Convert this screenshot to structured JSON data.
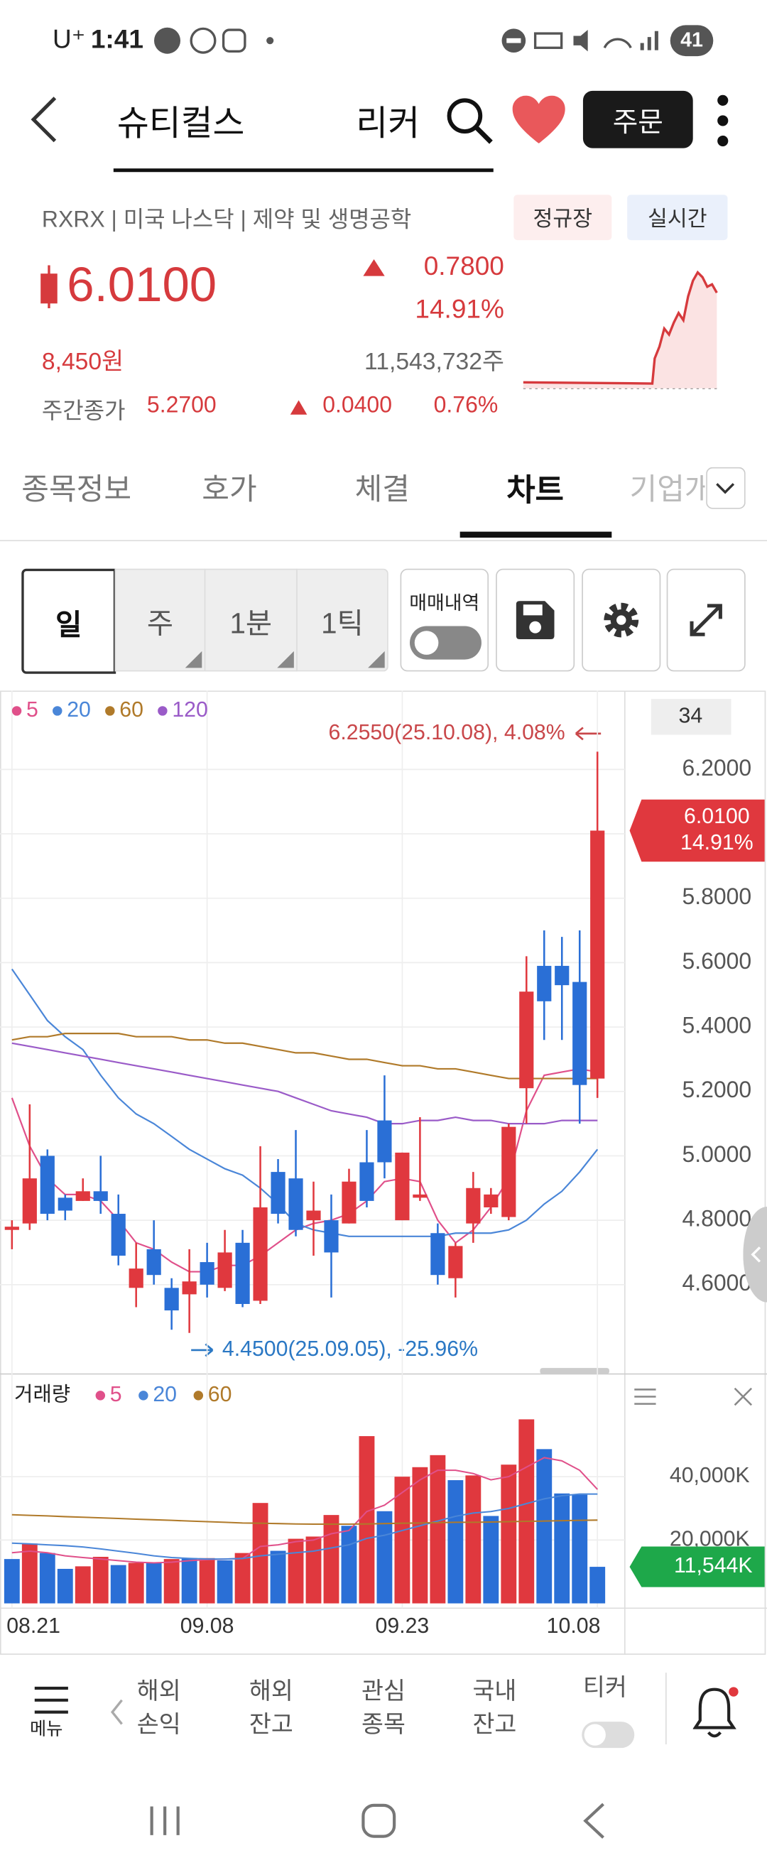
{
  "status_bar": {
    "carrier": "U⁺",
    "time": "1:41",
    "battery": "41"
  },
  "header": {
    "title": "슈티컬스",
    "ticker": "리커",
    "order": "주문"
  },
  "quote": {
    "info": "RXRX | 미국 나스닥 | 제약 및 생명공학",
    "session": "정규장",
    "realtime": "실시간",
    "price": "6.0100",
    "change": "0.7800",
    "change_pct": "14.91%",
    "price_krw": "8,450원",
    "volume": "11,543,732주",
    "day_close_label": "주간종가",
    "day_close": "5.2700",
    "day_change": "0.0400",
    "day_change_pct": "0.76%"
  },
  "tabs": [
    "종목정보",
    "호가",
    "체결",
    "차트",
    "기업개요"
  ],
  "toolbar": {
    "periods": [
      "일",
      "주",
      "1분",
      "1틱"
    ],
    "trade_history": "매매내역"
  },
  "chart_data": [
    {
      "type": "candlestick",
      "categories": [
        "08.21",
        null,
        null,
        null,
        null,
        null,
        null,
        null,
        null,
        null,
        null,
        "09.08",
        null,
        null,
        null,
        null,
        null,
        null,
        null,
        null,
        null,
        null,
        "09.23",
        null,
        null,
        null,
        null,
        null,
        null,
        null,
        null,
        null,
        null,
        "10.08"
      ],
      "open": [
        4.77,
        4.79,
        5.0,
        4.87,
        4.86,
        4.89,
        4.82,
        4.59,
        4.71,
        4.59,
        4.57,
        4.67,
        4.59,
        4.73,
        4.55,
        4.95,
        4.93,
        4.8,
        4.8,
        4.79,
        4.98,
        5.11,
        4.8,
        4.87,
        4.76,
        4.62,
        4.79,
        4.84,
        4.81,
        5.21,
        5.59,
        5.59,
        5.54,
        5.24
      ],
      "high": [
        4.8,
        5.16,
        5.02,
        4.88,
        4.93,
        5.0,
        4.88,
        4.73,
        4.8,
        4.62,
        4.71,
        4.73,
        4.77,
        4.77,
        5.03,
        4.99,
        5.08,
        4.92,
        4.88,
        4.96,
        5.08,
        5.25,
        5.01,
        5.12,
        4.79,
        4.73,
        4.95,
        4.9,
        5.1,
        5.62,
        5.7,
        5.68,
        5.7,
        6.255
      ],
      "low": [
        4.71,
        4.77,
        4.8,
        4.8,
        4.86,
        4.82,
        4.66,
        4.53,
        4.6,
        4.46,
        4.45,
        4.56,
        4.58,
        4.53,
        4.54,
        4.79,
        4.75,
        4.69,
        4.56,
        4.79,
        4.84,
        4.93,
        4.8,
        4.86,
        4.6,
        4.56,
        4.73,
        4.82,
        4.8,
        5.1,
        5.36,
        5.36,
        5.1,
        5.18
      ],
      "close": [
        4.78,
        4.93,
        4.82,
        4.83,
        4.89,
        4.86,
        4.69,
        4.65,
        4.63,
        4.52,
        4.61,
        4.6,
        4.7,
        4.54,
        4.84,
        4.82,
        4.77,
        4.83,
        4.7,
        4.92,
        4.86,
        4.98,
        5.01,
        4.88,
        4.63,
        4.72,
        4.9,
        4.88,
        5.09,
        5.51,
        5.48,
        5.53,
        5.22,
        6.01
      ],
      "up_color": "#e0383e",
      "down_color": "#2a6fd6",
      "series": [
        {
          "name": "5",
          "color": "#e0508a",
          "values": [
            5.18,
            5.03,
            4.93,
            4.88,
            4.88,
            4.86,
            4.8,
            4.73,
            4.71,
            4.67,
            4.64,
            4.64,
            4.66,
            4.66,
            4.69,
            4.73,
            4.77,
            4.79,
            4.8,
            4.82,
            4.86,
            4.92,
            4.93,
            4.92,
            4.8,
            4.73,
            4.77,
            4.84,
            4.93,
            5.14,
            5.25,
            5.26,
            5.27,
            5.26
          ]
        },
        {
          "name": "20",
          "color": "#4a86d8",
          "values": [
            5.58,
            5.5,
            5.42,
            5.37,
            5.33,
            5.25,
            5.18,
            5.13,
            5.1,
            5.06,
            5.02,
            4.99,
            4.96,
            4.94,
            4.9,
            4.85,
            4.79,
            4.77,
            4.76,
            4.75,
            4.75,
            4.75,
            4.75,
            4.75,
            4.75,
            4.76,
            4.76,
            4.76,
            4.77,
            4.8,
            4.85,
            4.89,
            4.95,
            5.02
          ]
        },
        {
          "name": "60",
          "color": "#b07a2a",
          "values": [
            5.36,
            5.37,
            5.37,
            5.38,
            5.38,
            5.38,
            5.38,
            5.37,
            5.37,
            5.37,
            5.36,
            5.36,
            5.35,
            5.35,
            5.34,
            5.33,
            5.32,
            5.32,
            5.31,
            5.3,
            5.3,
            5.29,
            5.28,
            5.28,
            5.27,
            5.27,
            5.26,
            5.25,
            5.24,
            5.24,
            5.24,
            5.24,
            5.24,
            5.24
          ]
        },
        {
          "name": "120",
          "color": "#9a5bc8",
          "values": [
            5.35,
            5.34,
            5.33,
            5.32,
            5.31,
            5.3,
            5.29,
            5.28,
            5.27,
            5.26,
            5.25,
            5.24,
            5.23,
            5.22,
            5.21,
            5.2,
            5.18,
            5.16,
            5.14,
            5.13,
            5.12,
            5.1,
            5.1,
            5.11,
            5.11,
            5.12,
            5.11,
            5.11,
            5.1,
            5.1,
            5.1,
            5.11,
            5.11,
            5.11
          ]
        }
      ],
      "ylim": [
        4.33,
        6.43
      ],
      "yticks": [
        {
          "value": 4.6,
          "label": "4.6000"
        },
        {
          "value": 4.8,
          "label": "4.8000"
        },
        {
          "value": 5.0,
          "label": "5.0000"
        },
        {
          "value": 5.2,
          "label": "5.2000"
        },
        {
          "value": 5.4,
          "label": "5.4000"
        },
        {
          "value": 5.6,
          "label": "5.6000"
        },
        {
          "value": 5.8,
          "label": "5.8000"
        },
        {
          "value": 6.0,
          "label": "6.0000"
        },
        {
          "value": 6.2,
          "label": "6.2000"
        }
      ],
      "grid": true,
      "count": "34",
      "annotations": [
        "6.2550(25.10.08), 4.08%",
        "4.4500(25.09.05), -25.96%"
      ]
    },
    {
      "type": "bar",
      "title": "거래량",
      "values": [
        14000,
        18900,
        15900,
        10900,
        11700,
        14700,
        12100,
        12800,
        12800,
        14000,
        14300,
        14300,
        13600,
        15900,
        31700,
        16600,
        20400,
        21100,
        27900,
        24500,
        52800,
        29100,
        40000,
        43000,
        46800,
        38900,
        40400,
        27600,
        43800,
        58100,
        48700,
        34700,
        34300,
        11544
      ],
      "colors": [
        "#2a6fd6",
        "#e0383e",
        "#2a6fd6",
        "#2a6fd6",
        "#e0383e",
        "#e0383e",
        "#2a6fd6",
        "#e0383e",
        "#2a6fd6",
        "#e0383e",
        "#2a6fd6",
        "#e0383e",
        "#2a6fd6",
        "#e0383e",
        "#e0383e",
        "#2a6fd6",
        "#e0383e",
        "#e0383e",
        "#e0383e",
        "#2a6fd6",
        "#e0383e",
        "#2a6fd6",
        "#e0383e",
        "#e0383e",
        "#e0383e",
        "#2a6fd6",
        "#e0383e",
        "#2a6fd6",
        "#e0383e",
        "#e0383e",
        "#2a6fd6",
        "#2a6fd6",
        "#2a6fd6",
        "#2a6fd6"
      ],
      "series": [
        {
          "name": "5",
          "color": "#e0508a",
          "values": [
            16000,
            16500,
            16000,
            15000,
            14500,
            14000,
            13500,
            13000,
            12800,
            13000,
            13500,
            13800,
            14000,
            14200,
            18000,
            18500,
            19500,
            20000,
            22000,
            23000,
            29000,
            31000,
            35000,
            39000,
            42000,
            42000,
            41000,
            39000,
            40000,
            43000,
            46000,
            45000,
            42000,
            36000
          ]
        },
        {
          "name": "20",
          "color": "#4a86d8",
          "values": [
            19000,
            18800,
            18500,
            18200,
            17800,
            17200,
            16500,
            15800,
            15000,
            14500,
            14200,
            14000,
            14000,
            14200,
            15000,
            15500,
            16000,
            16500,
            17500,
            18500,
            20500,
            21500,
            23000,
            24500,
            26000,
            27500,
            28500,
            29000,
            30000,
            31500,
            33000,
            34000,
            34500,
            34500
          ]
        },
        {
          "name": "60",
          "color": "#b07a2a",
          "values": [
            28000,
            27800,
            27600,
            27400,
            27200,
            27000,
            26800,
            26600,
            26400,
            26200,
            26000,
            25800,
            25600,
            25400,
            25300,
            25200,
            25100,
            25000,
            25000,
            25000,
            25100,
            25200,
            25300,
            25400,
            25500,
            25600,
            25600,
            25700,
            25800,
            25900,
            26000,
            26100,
            26200,
            26300
          ]
        }
      ],
      "ylim": [
        0,
        69400
      ],
      "yticks": [
        {
          "value": 20000,
          "label": "20,000K"
        },
        {
          "value": 40000,
          "label": "40,000K"
        }
      ],
      "grid": true,
      "last_label": "11,544K"
    }
  ],
  "bottom_nav": {
    "menu": "메뉴",
    "items": [
      [
        "해외",
        "손익"
      ],
      [
        "해외",
        "잔고"
      ],
      [
        "관심",
        "종목"
      ],
      [
        "국내",
        "잔고"
      ]
    ],
    "ticker": "티커"
  }
}
